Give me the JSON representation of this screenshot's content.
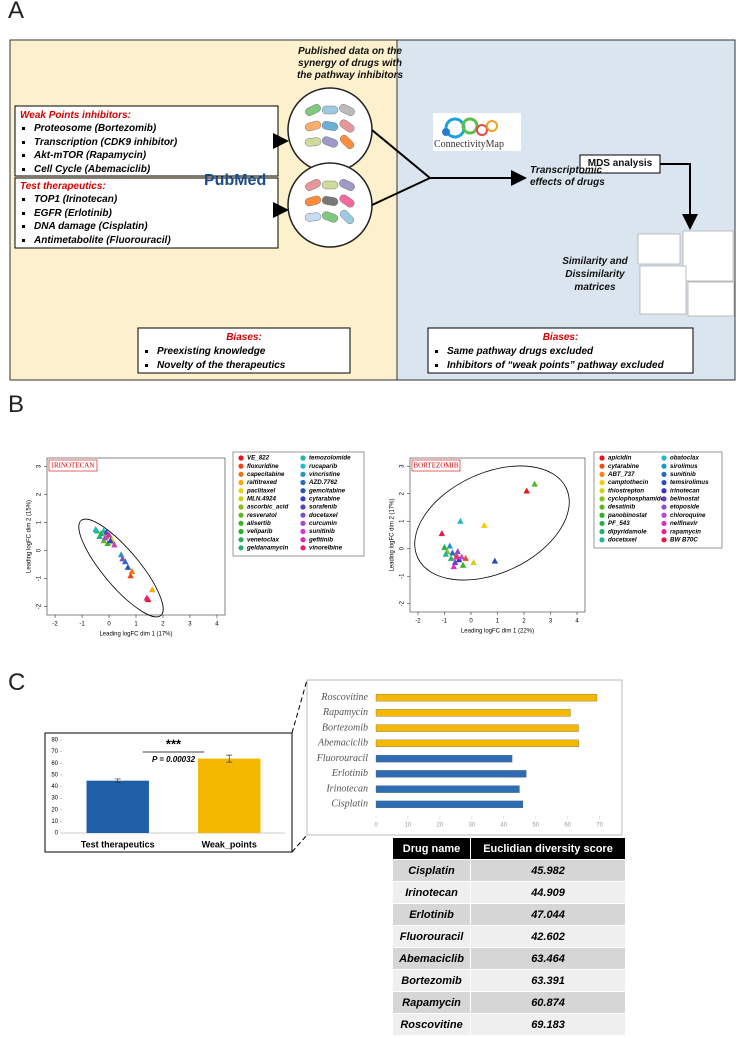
{
  "panel_a": {
    "label": "A",
    "published": "Published data on the synergy of drugs with the pathway inhibitors",
    "weak_title": "Weak Points inhibitors:",
    "weak_items": [
      "Proteosome (Bortezomib)",
      "Transcription (CDK9 inhibitor)",
      "Akt-mTOR (Rapamycin)",
      "Cell Cycle (Abemaciclib)"
    ],
    "test_title": "Test therapeutics:",
    "test_items": [
      "TOP1 (Irinotecan)",
      "EGFR (Erlotinib)",
      "DNA damage (Cisplatin)",
      "Antimetabolite (Fluorouracil)"
    ],
    "pubmed": "PubMed",
    "cmap": "ConnectivityMap",
    "transcriptomic": "Transcriptomic effects of drugs",
    "mds": "MDS analysis",
    "matrices": "Similarity and Dissimilarity matrices",
    "biases_left": {
      "title": "Biases:",
      "items": [
        "Preexisting knowledge",
        "Novelty of the therapeutics"
      ]
    },
    "biases_right": {
      "title": "Biases:",
      "items": [
        "Same pathway drugs excluded",
        "Inhibitors of “weak points” pathway excluded"
      ]
    }
  },
  "panel_b": {
    "label": "B"
  },
  "panel_c": {
    "label": "C"
  },
  "chart_data": [
    {
      "type": "scatter",
      "title": "IRINOTECAN",
      "x_label": "Leading logFC dim 1 (17%)",
      "y_label": "Leading logFC dim 2 (15%)",
      "xlim": [
        -2.3,
        4.3
      ],
      "ylim": [
        -2.3,
        3.3
      ],
      "xticks": [
        -2,
        -1,
        0,
        1,
        2,
        3,
        4
      ],
      "yticks": [
        -2,
        -1,
        0,
        1,
        2,
        3
      ],
      "series": [
        {
          "name": "VE_822",
          "color": "hsl(0,85%,50%)",
          "x": [
            1.45
          ],
          "values": [
            -1.75
          ]
        },
        {
          "name": "floxuridine",
          "color": "hsl(12,90%,52%)",
          "x": [
            0.8
          ],
          "values": [
            -0.9
          ]
        },
        {
          "name": "capecitabine",
          "color": "hsl(25,95%,52%)",
          "x": [
            0.85
          ],
          "values": [
            -0.75
          ]
        },
        {
          "name": "raltitrexed",
          "color": "hsl(40,95%,50%)",
          "x": [
            1.6
          ],
          "values": [
            -1.4
          ]
        },
        {
          "name": "paclitaxel",
          "color": "hsl(52,95%,48%)",
          "x": [
            0.1
          ],
          "values": [
            0.4
          ]
        },
        {
          "name": "MLN.4924",
          "color": "hsl(65,85%,45%)",
          "x": [
            0.15
          ],
          "values": [
            0.3
          ]
        },
        {
          "name": "ascorbic_acid",
          "color": "hsl(80,80%,42%)",
          "x": [
            -0.1
          ],
          "values": [
            0.5
          ]
        },
        {
          "name": "resveratol",
          "color": "hsl(95,75%,42%)",
          "x": [
            -0.2
          ],
          "values": [
            0.35
          ]
        },
        {
          "name": "alisertib",
          "color": "hsl(110,70%,42%)",
          "x": [
            -0.05
          ],
          "values": [
            0.25
          ]
        },
        {
          "name": "veliparib",
          "color": "hsl(125,65%,42%)",
          "x": [
            -0.3
          ],
          "values": [
            0.6
          ]
        },
        {
          "name": "venetoclax",
          "color": "hsl(140,65%,42%)",
          "x": [
            -0.45
          ],
          "values": [
            0.7
          ]
        },
        {
          "name": "geldanamycin",
          "color": "hsl(155,65%,42%)",
          "x": [
            -0.35
          ],
          "values": [
            0.5
          ]
        },
        {
          "name": "temozolomide",
          "color": "hsl(172,70%,42%)",
          "x": [
            -0.2
          ],
          "values": [
            0.7
          ]
        },
        {
          "name": "rucaparib",
          "color": "hsl(185,75%,45%)",
          "x": [
            -0.5
          ],
          "values": [
            0.75
          ]
        },
        {
          "name": "vincristine",
          "color": "hsl(198,75%,45%)",
          "x": [
            0.45
          ],
          "values": [
            -0.15
          ]
        },
        {
          "name": "AZD.7762",
          "color": "hsl(212,70%,45%)",
          "x": [
            0.6
          ],
          "values": [
            -0.4
          ]
        },
        {
          "name": "gemcitabine",
          "color": "hsl(224,65%,45%)",
          "x": [
            0.7
          ],
          "values": [
            -0.6
          ]
        },
        {
          "name": "cytarabine",
          "color": "hsl(236,60%,50%)",
          "x": [
            0.05
          ],
          "values": [
            0.35
          ]
        },
        {
          "name": "sorafenib",
          "color": "hsl(250,55%,52%)",
          "x": [
            -0.1
          ],
          "values": [
            0.65
          ]
        },
        {
          "name": "docetaxel",
          "color": "hsl(265,55%,55%)",
          "x": [
            0.5
          ],
          "values": [
            -0.3
          ]
        },
        {
          "name": "curcumin",
          "color": "hsl(282,60%,55%)",
          "x": [
            -0.15
          ],
          "values": [
            0.45
          ]
        },
        {
          "name": "sunitinib",
          "color": "hsl(300,65%,52%)",
          "x": [
            0.2
          ],
          "values": [
            0.2
          ]
        },
        {
          "name": "gefitinib",
          "color": "hsl(318,75%,52%)",
          "x": [
            0.0
          ],
          "values": [
            0.55
          ]
        },
        {
          "name": "vinorelbine",
          "color": "hsl(335,85%,52%)",
          "x": [
            1.4
          ],
          "values": [
            -1.7
          ]
        }
      ]
    },
    {
      "type": "scatter",
      "title": "BORTEZOMIB",
      "x_label": "Leading logFC dim 1 (22%)",
      "y_label": "Leading logFC dim 2 (17%)",
      "xlim": [
        -2.3,
        4.3
      ],
      "ylim": [
        -2.3,
        3.3
      ],
      "xticks": [
        -2,
        -1,
        0,
        1,
        2,
        3,
        4
      ],
      "yticks": [
        -2,
        -1,
        0,
        1,
        2,
        3
      ],
      "series": [
        {
          "name": "apicidin",
          "color": "hsl(0,85%,50%)",
          "x": [
            2.1
          ],
          "values": [
            2.1
          ]
        },
        {
          "name": "cytarabine",
          "color": "hsl(15,90%,52%)",
          "x": [
            -0.2
          ],
          "values": [
            -0.35
          ]
        },
        {
          "name": "ABT_737",
          "color": "hsl(30,95%,52%)",
          "x": [
            -0.55
          ],
          "values": [
            -0.2
          ]
        },
        {
          "name": "camptothecin",
          "color": "hsl(48,95%,50%)",
          "x": [
            0.5
          ],
          "values": [
            0.85
          ]
        },
        {
          "name": "thiostrepton",
          "color": "hsl(62,85%,45%)",
          "x": [
            0.1
          ],
          "values": [
            -0.5
          ]
        },
        {
          "name": "cyclophosphamide",
          "color": "hsl(80,80%,42%)",
          "x": [
            -0.9
          ],
          "values": [
            -0.1
          ]
        },
        {
          "name": "desatinib",
          "color": "hsl(98,70%,42%)",
          "x": [
            2.4
          ],
          "values": [
            2.35
          ]
        },
        {
          "name": "panobinostat",
          "color": "hsl(115,65%,42%)",
          "x": [
            -0.3
          ],
          "values": [
            -0.6
          ]
        },
        {
          "name": "PF_543",
          "color": "hsl(132,65%,42%)",
          "x": [
            -1.0
          ],
          "values": [
            0.05
          ]
        },
        {
          "name": "dipyridamole",
          "color": "hsl(150,65%,42%)",
          "x": [
            -0.75
          ],
          "values": [
            -0.35
          ]
        },
        {
          "name": "docetaxel",
          "color": "hsl(168,70%,42%)",
          "x": [
            -0.95
          ],
          "values": [
            -0.2
          ]
        },
        {
          "name": "obatoclax",
          "color": "hsl(185,75%,45%)",
          "x": [
            -0.4
          ],
          "values": [
            1.0
          ]
        },
        {
          "name": "sirolimus",
          "color": "hsl(198,75%,45%)",
          "x": [
            -0.8
          ],
          "values": [
            0.1
          ]
        },
        {
          "name": "sunitinib",
          "color": "hsl(212,70%,45%)",
          "x": [
            -0.7
          ],
          "values": [
            -0.15
          ]
        },
        {
          "name": "temsirolimus",
          "color": "hsl(226,65%,45%)",
          "x": [
            0.9
          ],
          "values": [
            -0.45
          ]
        },
        {
          "name": "irinotecan",
          "color": "hsl(240,60%,50%)",
          "x": [
            -0.45
          ],
          "values": [
            -0.4
          ]
        },
        {
          "name": "belinostat",
          "color": "hsl(255,55%,52%)",
          "x": [
            -0.6
          ],
          "values": [
            -0.5
          ]
        },
        {
          "name": "etoposide",
          "color": "hsl(272,55%,55%)",
          "x": [
            -0.5
          ],
          "values": [
            -0.1
          ]
        },
        {
          "name": "chloroquine",
          "color": "hsl(290,60%,55%)",
          "x": [
            -0.35
          ],
          "values": [
            -0.3
          ]
        },
        {
          "name": "nelfinavir",
          "color": "hsl(308,70%,52%)",
          "x": [
            -0.65
          ],
          "values": [
            -0.65
          ]
        },
        {
          "name": "rapamycin",
          "color": "hsl(325,80%,52%)",
          "x": [
            -0.55
          ],
          "values": [
            -0.3
          ]
        },
        {
          "name": "BW B70C",
          "color": "hsl(345,85%,50%)",
          "x": [
            -1.1
          ],
          "values": [
            0.55
          ]
        }
      ]
    },
    {
      "type": "bar",
      "categories": [
        "Test therapeutics",
        "Weak_points"
      ],
      "values": [
        45,
        64
      ],
      "errors": [
        1.5,
        3
      ],
      "colors": [
        "#1f5fa8",
        "#f5b800"
      ],
      "ylim": [
        0,
        80
      ],
      "yticks": [
        0,
        10,
        20,
        30,
        40,
        50,
        60,
        70,
        80
      ],
      "significance": "***",
      "p_value_label": "P = 0.00032"
    },
    {
      "type": "barh",
      "categories": [
        "Cisplatin",
        "Irinotecan",
        "Erlotinib",
        "Fluorouracil",
        "Abemaciclib",
        "Bortezomib",
        "Rapamycin",
        "Roscovitine"
      ],
      "values": [
        45.982,
        44.909,
        47.044,
        42.602,
        63.464,
        63.391,
        60.874,
        69.183
      ],
      "colors": [
        "#2e6db4",
        "#2e6db4",
        "#2e6db4",
        "#2e6db4",
        "#f5b800",
        "#f5b800",
        "#f5b800",
        "#f5b800"
      ],
      "xlim": [
        0,
        72
      ],
      "xticks": [
        0,
        10,
        20,
        30,
        40,
        50,
        60,
        70
      ]
    }
  ],
  "table": {
    "header": [
      "Drug name",
      "Euclidian diversity score"
    ],
    "rows": [
      [
        "Cisplatin",
        "45.982"
      ],
      [
        "Irinotecan",
        "44.909"
      ],
      [
        "Erlotinib",
        "47.044"
      ],
      [
        "Fluorouracil",
        "42.602"
      ],
      [
        "Abemaciclib",
        "63.464"
      ],
      [
        "Bortezomib",
        "63.391"
      ],
      [
        "Rapamycin",
        "60.874"
      ],
      [
        "Roscovitine",
        "69.183"
      ]
    ]
  }
}
